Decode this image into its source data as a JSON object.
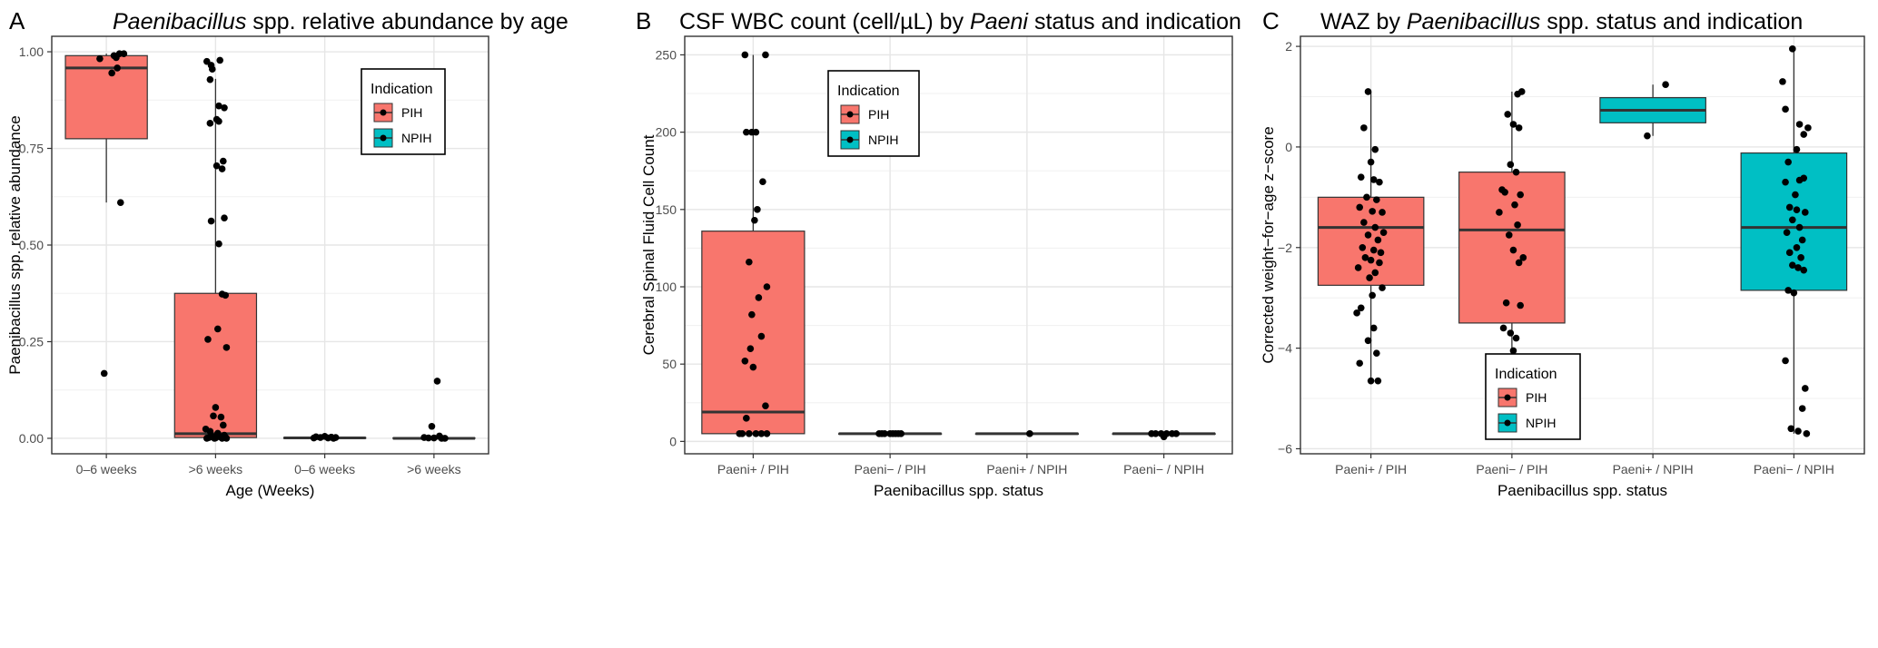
{
  "panels": [
    {
      "letter": "A",
      "title_parts": [
        {
          "text": "Paenibacillus",
          "italic": true
        },
        {
          "text": " spp. relative abundance by age",
          "italic": false
        }
      ],
      "xlabel": "Age (Weeks)",
      "ylabel": "Paenibacillus spp. relative abundance",
      "legend": {
        "title": "Indication",
        "entries": [
          {
            "label": "PIH",
            "color": "#F8766D"
          },
          {
            "label": "NPIH",
            "color": "#00BFC4"
          }
        ]
      }
    },
    {
      "letter": "B",
      "title_parts": [
        {
          "text": "CSF WBC count (cell/µL) by ",
          "italic": false
        },
        {
          "text": "Paeni",
          "italic": true
        },
        {
          "text": " status and indication",
          "italic": false
        }
      ],
      "xlabel": "Paenibacillus spp. status",
      "ylabel": "Cerebral Spinal Fluid Cell Count",
      "legend": {
        "title": "Indication",
        "entries": [
          {
            "label": "PIH",
            "color": "#F8766D"
          },
          {
            "label": "NPIH",
            "color": "#00BFC4"
          }
        ]
      }
    },
    {
      "letter": "C",
      "title_parts": [
        {
          "text": "WAZ by ",
          "italic": false
        },
        {
          "text": "Paenibacillus",
          "italic": true
        },
        {
          "text": " spp. status and indication",
          "italic": false
        }
      ],
      "xlabel": "Paenibacillus spp. status",
      "ylabel": "Corrected weight−for−age z−score",
      "legend": {
        "title": "Indication",
        "entries": [
          {
            "label": "PIH",
            "color": "#F8766D"
          },
          {
            "label": "NPIH",
            "color": "#00BFC4"
          }
        ]
      }
    }
  ],
  "chart_data": [
    {
      "type": "box",
      "title": "Paenibacillus spp. relative abundance by age",
      "xlabel": "Age (Weeks)",
      "ylabel": "Paenibacillus spp. relative abundance",
      "ylim": [
        -0.04,
        1.04
      ],
      "yticks": [
        0.0,
        0.25,
        0.5,
        0.75,
        1.0
      ],
      "ytick_labels": [
        "0.00",
        "0.25",
        "0.50",
        "0.75",
        "1.00"
      ],
      "grid": true,
      "legend_position": "top-right",
      "categories": [
        "0–6 weeks",
        ">6 weeks",
        "0–6 weeks",
        ">6 weeks"
      ],
      "boxes": [
        {
          "category": "0–6 weeks",
          "indication": "PIH",
          "color": "#F8766D",
          "whisker_low": 0.61,
          "q1": 0.775,
          "median": 0.958,
          "q3": 0.99,
          "whisker_high": 0.995
        },
        {
          "category": ">6 weeks",
          "indication": "PIH",
          "color": "#F8766D",
          "whisker_low": 0.0,
          "q1": 0.002,
          "median": 0.012,
          "q3": 0.375,
          "whisker_high": 0.93
        },
        {
          "category": "0–6 weeks",
          "indication": "PIH",
          "color": "#F8766D",
          "whisker_low": 0.0,
          "q1": 0.0,
          "median": 0.001,
          "q3": 0.002,
          "whisker_high": 0.004
        },
        {
          "category": ">6 weeks",
          "indication": "PIH",
          "color": "#F8766D",
          "whisker_low": 0.0,
          "q1": 0.0,
          "median": 0.0,
          "q3": 0.001,
          "whisker_high": 0.003
        }
      ],
      "points": [
        [
          [
            -0.06,
            0.982
          ],
          [
            0.07,
            0.99
          ],
          [
            0.12,
            0.995
          ],
          [
            0.16,
            0.995
          ],
          [
            0.09,
            0.985
          ],
          [
            0.05,
            0.945
          ],
          [
            0.1,
            0.958
          ],
          [
            0.13,
            0.61
          ],
          [
            -0.02,
            0.168
          ]
        ],
        [
          [
            -0.08,
            0.975
          ],
          [
            -0.04,
            0.965
          ],
          [
            0.04,
            0.978
          ],
          [
            -0.03,
            0.955
          ],
          [
            -0.05,
            0.928
          ],
          [
            0.03,
            0.86
          ],
          [
            -0.05,
            0.815
          ],
          [
            0.01,
            0.825
          ],
          [
            0.08,
            0.855
          ],
          [
            0.03,
            0.82
          ],
          [
            0.07,
            0.717
          ],
          [
            0.01,
            0.705
          ],
          [
            0.06,
            0.697
          ],
          [
            0.08,
            0.57
          ],
          [
            -0.04,
            0.562
          ],
          [
            0.03,
            0.503
          ],
          [
            0.06,
            0.373
          ],
          [
            0.09,
            0.37
          ],
          [
            0.02,
            0.283
          ],
          [
            -0.07,
            0.256
          ],
          [
            0.1,
            0.235
          ],
          [
            0.0,
            0.08
          ],
          [
            -0.02,
            0.058
          ],
          [
            0.05,
            0.055
          ],
          [
            0.07,
            0.034
          ],
          [
            -0.09,
            0.024
          ],
          [
            -0.05,
            0.018
          ],
          [
            0.02,
            0.013
          ],
          [
            0.08,
            0.008
          ],
          [
            -0.03,
            0.005
          ],
          [
            0.04,
            0.004
          ],
          [
            0.09,
            0.003
          ],
          [
            -0.06,
            0.002
          ],
          [
            0.0,
            0.001
          ],
          [
            0.06,
            0.0
          ],
          [
            -0.08,
            0.0
          ],
          [
            0.1,
            0.0
          ],
          [
            -0.01,
            0.0
          ]
        ],
        [
          [
            -0.08,
            0.004
          ],
          [
            0.0,
            0.005
          ],
          [
            0.06,
            0.003
          ],
          [
            0.1,
            0.002
          ],
          [
            -0.04,
            0.002
          ],
          [
            0.03,
            0.001
          ],
          [
            -0.1,
            0.001
          ],
          [
            0.08,
            0.0
          ]
        ],
        [
          [
            0.03,
            0.148
          ],
          [
            -0.02,
            0.031
          ],
          [
            0.05,
            0.006
          ],
          [
            -0.09,
            0.002
          ],
          [
            -0.05,
            0.001
          ],
          [
            0.0,
            0.001
          ],
          [
            0.07,
            0.0
          ],
          [
            0.1,
            0.0
          ]
        ]
      ]
    },
    {
      "type": "box",
      "title": "CSF WBC count (cell/µL) by Paeni status and indication",
      "xlabel": "Paenibacillus spp. status",
      "ylabel": "Cerebral Spinal Fluid Cell Count",
      "ylim": [
        -8,
        262
      ],
      "yticks": [
        0,
        50,
        100,
        150,
        200,
        250
      ],
      "ytick_labels": [
        "0",
        "50",
        "100",
        "150",
        "200",
        "250"
      ],
      "grid": true,
      "legend_position": "top-right",
      "categories": [
        "Paeni+ / PIH",
        "Paeni− / PIH",
        "Paeni+ / NPIH",
        "Paeni− / NPIH"
      ],
      "boxes": [
        {
          "category": "Paeni+ / PIH",
          "indication": "PIH",
          "color": "#F8766D",
          "whisker_low": 5,
          "q1": 5,
          "median": 19,
          "q3": 136,
          "whisker_high": 250
        },
        {
          "category": "Paeni− / PIH",
          "indication": "PIH",
          "color": "#F8766D",
          "whisker_low": 5,
          "q1": 5,
          "median": 5,
          "q3": 5,
          "whisker_high": 5
        },
        {
          "category": "Paeni+ / NPIH",
          "indication": "NPIH",
          "color": "#00BFC4",
          "whisker_low": 5,
          "q1": 5,
          "median": 5,
          "q3": 5,
          "whisker_high": 5
        },
        {
          "category": "Paeni− / NPIH",
          "indication": "NPIH",
          "color": "#00BFC4",
          "whisker_low": 5,
          "q1": 5,
          "median": 5,
          "q3": 5,
          "whisker_high": 5
        }
      ],
      "points": [
        [
          [
            -0.06,
            250
          ],
          [
            0.09,
            250
          ],
          [
            -0.05,
            200
          ],
          [
            0.02,
            200
          ],
          [
            -0.01,
            200
          ],
          [
            0.07,
            168
          ],
          [
            0.03,
            150
          ],
          [
            0.01,
            143
          ],
          [
            -0.03,
            116
          ],
          [
            0.1,
            100
          ],
          [
            0.04,
            93
          ],
          [
            -0.01,
            82
          ],
          [
            0.06,
            68
          ],
          [
            -0.02,
            60
          ],
          [
            -0.06,
            52
          ],
          [
            0.0,
            48
          ],
          [
            0.09,
            23
          ],
          [
            -0.05,
            15
          ],
          [
            -0.08,
            5
          ],
          [
            -0.03,
            5
          ],
          [
            0.02,
            5
          ],
          [
            0.06,
            5
          ],
          [
            0.1,
            5
          ],
          [
            -0.1,
            5
          ]
        ],
        [
          [
            -0.08,
            5
          ],
          [
            -0.04,
            5
          ],
          [
            0.0,
            5
          ],
          [
            0.04,
            5
          ],
          [
            0.08,
            5
          ],
          [
            -0.06,
            5
          ],
          [
            0.02,
            5
          ],
          [
            0.06,
            5
          ]
        ],
        [
          [
            0.02,
            5
          ]
        ],
        [
          [
            -0.06,
            5
          ],
          [
            -0.02,
            5
          ],
          [
            0.02,
            5
          ],
          [
            0.06,
            5
          ],
          [
            0.09,
            5
          ],
          [
            -0.09,
            5
          ],
          [
            0.0,
            3
          ]
        ]
      ]
    },
    {
      "type": "box",
      "title": "WAZ by Paenibacillus spp. status and indication",
      "xlabel": "Paenibacillus spp. status",
      "ylabel": "Corrected weight−for−age z−score",
      "ylim": [
        -6.1,
        2.2
      ],
      "yticks": [
        -6,
        -4,
        -2,
        0,
        2
      ],
      "ytick_labels": [
        "−6",
        "−4",
        "−2",
        "0",
        "2"
      ],
      "grid": true,
      "legend_position": "bottom-right",
      "categories": [
        "Paeni+ / PIH",
        "Paeni− / PIH",
        "Paeni+ / NPIH",
        "Paeni− / NPIH"
      ],
      "boxes": [
        {
          "category": "Paeni+ / PIH",
          "indication": "PIH",
          "color": "#F8766D",
          "whisker_low": -4.65,
          "q1": -2.75,
          "median": -1.6,
          "q3": -1.0,
          "whisker_high": 1.1
        },
        {
          "category": "Paeni− / PIH",
          "indication": "PIH",
          "color": "#F8766D",
          "whisker_low": -5.5,
          "q1": -3.5,
          "median": -1.65,
          "q3": -0.5,
          "whisker_high": 1.1
        },
        {
          "category": "Paeni+ / NPIH",
          "indication": "NPIH",
          "color": "#00BFC4",
          "whisker_low": 0.22,
          "q1": 0.48,
          "median": 0.73,
          "q3": 0.98,
          "whisker_high": 1.24
        },
        {
          "category": "Paeni− / NPIH",
          "indication": "NPIH",
          "color": "#00BFC4",
          "whisker_low": -5.7,
          "q1": -2.85,
          "median": -1.6,
          "q3": -0.12,
          "whisker_high": 1.95
        }
      ],
      "points": [
        [
          [
            -0.02,
            1.1
          ],
          [
            -0.05,
            0.38
          ],
          [
            0.03,
            -0.05
          ],
          [
            0.0,
            -0.3
          ],
          [
            -0.07,
            -0.6
          ],
          [
            0.02,
            -0.65
          ],
          [
            0.06,
            -0.7
          ],
          [
            -0.03,
            -1.0
          ],
          [
            0.04,
            -1.05
          ],
          [
            -0.08,
            -1.2
          ],
          [
            0.01,
            -1.28
          ],
          [
            0.08,
            -1.3
          ],
          [
            -0.05,
            -1.5
          ],
          [
            0.03,
            -1.6
          ],
          [
            0.09,
            -1.7
          ],
          [
            -0.02,
            -1.75
          ],
          [
            0.05,
            -1.85
          ],
          [
            -0.06,
            -2.0
          ],
          [
            0.02,
            -2.05
          ],
          [
            0.07,
            -2.1
          ],
          [
            -0.04,
            -2.2
          ],
          [
            0.0,
            -2.25
          ],
          [
            0.06,
            -2.3
          ],
          [
            -0.09,
            -2.4
          ],
          [
            0.03,
            -2.5
          ],
          [
            -0.01,
            -2.6
          ],
          [
            0.08,
            -2.8
          ],
          [
            0.01,
            -2.95
          ],
          [
            -0.07,
            -3.2
          ],
          [
            -0.1,
            -3.3
          ],
          [
            0.02,
            -3.6
          ],
          [
            -0.02,
            -3.85
          ],
          [
            0.04,
            -4.1
          ],
          [
            -0.08,
            -4.3
          ],
          [
            0.0,
            -4.65
          ],
          [
            0.05,
            -4.65
          ]
        ],
        [
          [
            0.07,
            1.1
          ],
          [
            0.04,
            1.05
          ],
          [
            -0.03,
            0.65
          ],
          [
            0.01,
            0.45
          ],
          [
            0.05,
            0.38
          ],
          [
            -0.01,
            -0.35
          ],
          [
            0.03,
            -0.5
          ],
          [
            -0.07,
            -0.85
          ],
          [
            -0.05,
            -0.9
          ],
          [
            0.06,
            -0.95
          ],
          [
            0.02,
            -1.15
          ],
          [
            -0.09,
            -1.3
          ],
          [
            0.04,
            -1.55
          ],
          [
            -0.02,
            -1.75
          ],
          [
            0.01,
            -2.05
          ],
          [
            0.08,
            -2.2
          ],
          [
            0.05,
            -2.3
          ],
          [
            -0.04,
            -3.1
          ],
          [
            0.06,
            -3.15
          ],
          [
            -0.06,
            -3.6
          ],
          [
            -0.01,
            -3.7
          ],
          [
            0.03,
            -3.8
          ],
          [
            0.01,
            -4.05
          ],
          [
            0.05,
            -5.3
          ],
          [
            0.06,
            -5.35
          ],
          [
            -0.03,
            -5.5
          ]
        ],
        [
          [
            0.09,
            1.24
          ],
          [
            -0.04,
            0.22
          ]
        ],
        [
          [
            -0.01,
            1.95
          ],
          [
            -0.08,
            1.3
          ],
          [
            -0.06,
            0.75
          ],
          [
            0.04,
            0.45
          ],
          [
            0.1,
            0.38
          ],
          [
            0.07,
            0.25
          ],
          [
            0.02,
            -0.05
          ],
          [
            -0.04,
            -0.3
          ],
          [
            0.07,
            -0.62
          ],
          [
            0.04,
            -0.66
          ],
          [
            -0.06,
            -0.7
          ],
          [
            0.01,
            -0.95
          ],
          [
            -0.03,
            -1.2
          ],
          [
            0.02,
            -1.25
          ],
          [
            0.08,
            -1.3
          ],
          [
            -0.01,
            -1.45
          ],
          [
            0.04,
            -1.6
          ],
          [
            -0.05,
            -1.7
          ],
          [
            0.06,
            -1.85
          ],
          [
            0.02,
            -2.0
          ],
          [
            -0.03,
            -2.1
          ],
          [
            0.05,
            -2.2
          ],
          [
            -0.01,
            -2.35
          ],
          [
            0.03,
            -2.4
          ],
          [
            0.07,
            -2.45
          ],
          [
            -0.04,
            -2.85
          ],
          [
            0.0,
            -2.9
          ],
          [
            -0.06,
            -4.25
          ],
          [
            0.08,
            -4.8
          ],
          [
            0.06,
            -5.2
          ],
          [
            -0.02,
            -5.6
          ],
          [
            0.03,
            -5.65
          ],
          [
            0.09,
            -5.7
          ]
        ]
      ]
    }
  ]
}
